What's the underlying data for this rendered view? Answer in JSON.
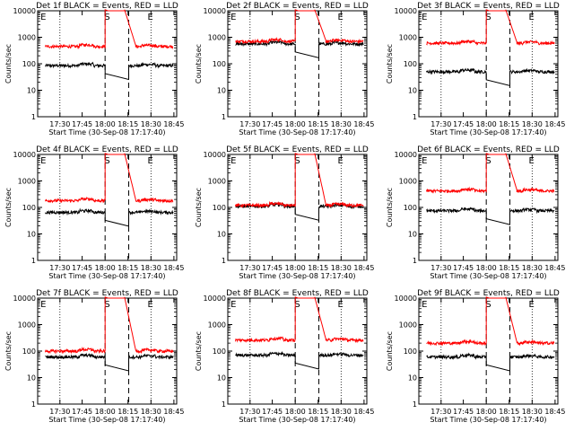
{
  "chart_data": [
    {
      "type": "line",
      "title": "Det 1f BLACK = Events, RED = LLD",
      "xlabel": "Start Time (30-Sep-08 17:17:40)",
      "ylabel": "Counts/sec",
      "yscale": "log",
      "ylim": [
        1,
        10000
      ],
      "xticks": [
        "17:30",
        "17:45",
        "18:00",
        "18:15",
        "18:30",
        "18:45"
      ],
      "yticks": [
        "1",
        "10",
        "100",
        "1000",
        "10000"
      ],
      "markers": [
        "E",
        "S",
        "E"
      ],
      "series": [
        {
          "color": "#000000",
          "baseline": 85,
          "gap_level": null
        },
        {
          "color": "#ff0000",
          "baseline": 450,
          "gap_level": 11000
        }
      ]
    },
    {
      "type": "line",
      "title": "Det 2f BLACK = Events, RED = LLD",
      "xlabel": "Start Time (30-Sep-08 17:17:40)",
      "ylabel": "Counts/sec",
      "yscale": "log",
      "ylim": [
        1,
        10000
      ],
      "xticks": [
        "17:30",
        "17:45",
        "18:00",
        "18:15",
        "18:30",
        "18:45"
      ],
      "yticks": [
        "1",
        "10",
        "100",
        "1000",
        "10000"
      ],
      "markers": [
        "E",
        "S",
        "E"
      ],
      "series": [
        {
          "color": "#000000",
          "baseline": 560,
          "gap_level": null
        },
        {
          "color": "#ff0000",
          "baseline": 700,
          "gap_level": 11000
        }
      ]
    },
    {
      "type": "line",
      "title": "Det 3f BLACK = Events, RED = LLD",
      "xlabel": "Start Time (30-Sep-08 17:17:40)",
      "ylabel": "Counts/sec",
      "yscale": "log",
      "ylim": [
        1,
        10000
      ],
      "xticks": [
        "17:30",
        "17:45",
        "18:00",
        "18:15",
        "18:30",
        "18:45"
      ],
      "yticks": [
        "1",
        "10",
        "100",
        "1000",
        "10000"
      ],
      "markers": [
        "E",
        "S",
        "E"
      ],
      "series": [
        {
          "color": "#000000",
          "baseline": 50,
          "gap_level": null
        },
        {
          "color": "#ff0000",
          "baseline": 600,
          "gap_level": 11000
        }
      ]
    },
    {
      "type": "line",
      "title": "Det 4f BLACK = Events, RED = LLD",
      "xlabel": "Start Time (30-Sep-08 17:17:40)",
      "ylabel": "Counts/sec",
      "yscale": "log",
      "ylim": [
        1,
        10000
      ],
      "xticks": [
        "17:30",
        "17:45",
        "18:00",
        "18:15",
        "18:30",
        "18:45"
      ],
      "yticks": [
        "1",
        "10",
        "100",
        "1000",
        "10000"
      ],
      "markers": [
        "E",
        "S",
        "E"
      ],
      "series": [
        {
          "color": "#000000",
          "baseline": 65,
          "gap_level": null
        },
        {
          "color": "#ff0000",
          "baseline": 180,
          "gap_level": 11000
        }
      ]
    },
    {
      "type": "line",
      "title": "Det 5f BLACK = Events, RED = LLD",
      "xlabel": "Start Time (30-Sep-08 17:17:40)",
      "ylabel": "Counts/sec",
      "yscale": "log",
      "ylim": [
        1,
        10000
      ],
      "xticks": [
        "17:30",
        "17:45",
        "18:00",
        "18:15",
        "18:30",
        "18:45"
      ],
      "yticks": [
        "1",
        "10",
        "100",
        "1000",
        "10000"
      ],
      "markers": [
        "E",
        "S",
        "E"
      ],
      "series": [
        {
          "color": "#000000",
          "baseline": 110,
          "gap_level": null
        },
        {
          "color": "#ff0000",
          "baseline": 120,
          "gap_level": 11000
        }
      ]
    },
    {
      "type": "line",
      "title": "Det 6f BLACK = Events, RED = LLD",
      "xlabel": "Start Time (30-Sep-08 17:17:40)",
      "ylabel": "Counts/sec",
      "yscale": "log",
      "ylim": [
        1,
        10000
      ],
      "xticks": [
        "17:30",
        "17:45",
        "18:00",
        "18:15",
        "18:30",
        "18:45"
      ],
      "yticks": [
        "1",
        "10",
        "100",
        "1000",
        "10000"
      ],
      "markers": [
        "E",
        "S",
        "E"
      ],
      "series": [
        {
          "color": "#000000",
          "baseline": 75,
          "gap_level": null
        },
        {
          "color": "#ff0000",
          "baseline": 420,
          "gap_level": 11000
        }
      ]
    },
    {
      "type": "line",
      "title": "Det 7f BLACK = Events, RED = LLD",
      "xlabel": "Start Time (30-Sep-08 17:17:40)",
      "ylabel": "Counts/sec",
      "yscale": "log",
      "ylim": [
        1,
        10000
      ],
      "xticks": [
        "17:30",
        "17:45",
        "18:00",
        "18:15",
        "18:30",
        "18:45"
      ],
      "yticks": [
        "1",
        "10",
        "100",
        "1000",
        "10000"
      ],
      "markers": [
        "E",
        "S",
        "E"
      ],
      "series": [
        {
          "color": "#000000",
          "baseline": 60,
          "gap_level": null
        },
        {
          "color": "#ff0000",
          "baseline": 100,
          "gap_level": 11000
        }
      ]
    },
    {
      "type": "line",
      "title": "Det 8f BLACK = Events, RED = LLD",
      "xlabel": "Start Time (30-Sep-08 17:17:40)",
      "ylabel": "Counts/sec",
      "yscale": "log",
      "ylim": [
        1,
        10000
      ],
      "xticks": [
        "17:30",
        "17:45",
        "18:00",
        "18:15",
        "18:30",
        "18:45"
      ],
      "yticks": [
        "1",
        "10",
        "100",
        "1000",
        "10000"
      ],
      "markers": [
        "E",
        "S",
        "E"
      ],
      "series": [
        {
          "color": "#000000",
          "baseline": 70,
          "gap_level": null
        },
        {
          "color": "#ff0000",
          "baseline": 260,
          "gap_level": 11000
        }
      ]
    },
    {
      "type": "line",
      "title": "Det 9f BLACK = Events, RED = LLD",
      "xlabel": "Start Time (30-Sep-08 17:17:40)",
      "ylabel": "Counts/sec",
      "yscale": "log",
      "ylim": [
        1,
        10000
      ],
      "xticks": [
        "17:30",
        "17:45",
        "18:00",
        "18:15",
        "18:30",
        "18:45"
      ],
      "yticks": [
        "1",
        "10",
        "100",
        "1000",
        "10000"
      ],
      "markers": [
        "E",
        "S",
        "E"
      ],
      "series": [
        {
          "color": "#000000",
          "baseline": 60,
          "gap_level": null
        },
        {
          "color": "#ff0000",
          "baseline": 200,
          "gap_level": 11000
        }
      ]
    }
  ]
}
